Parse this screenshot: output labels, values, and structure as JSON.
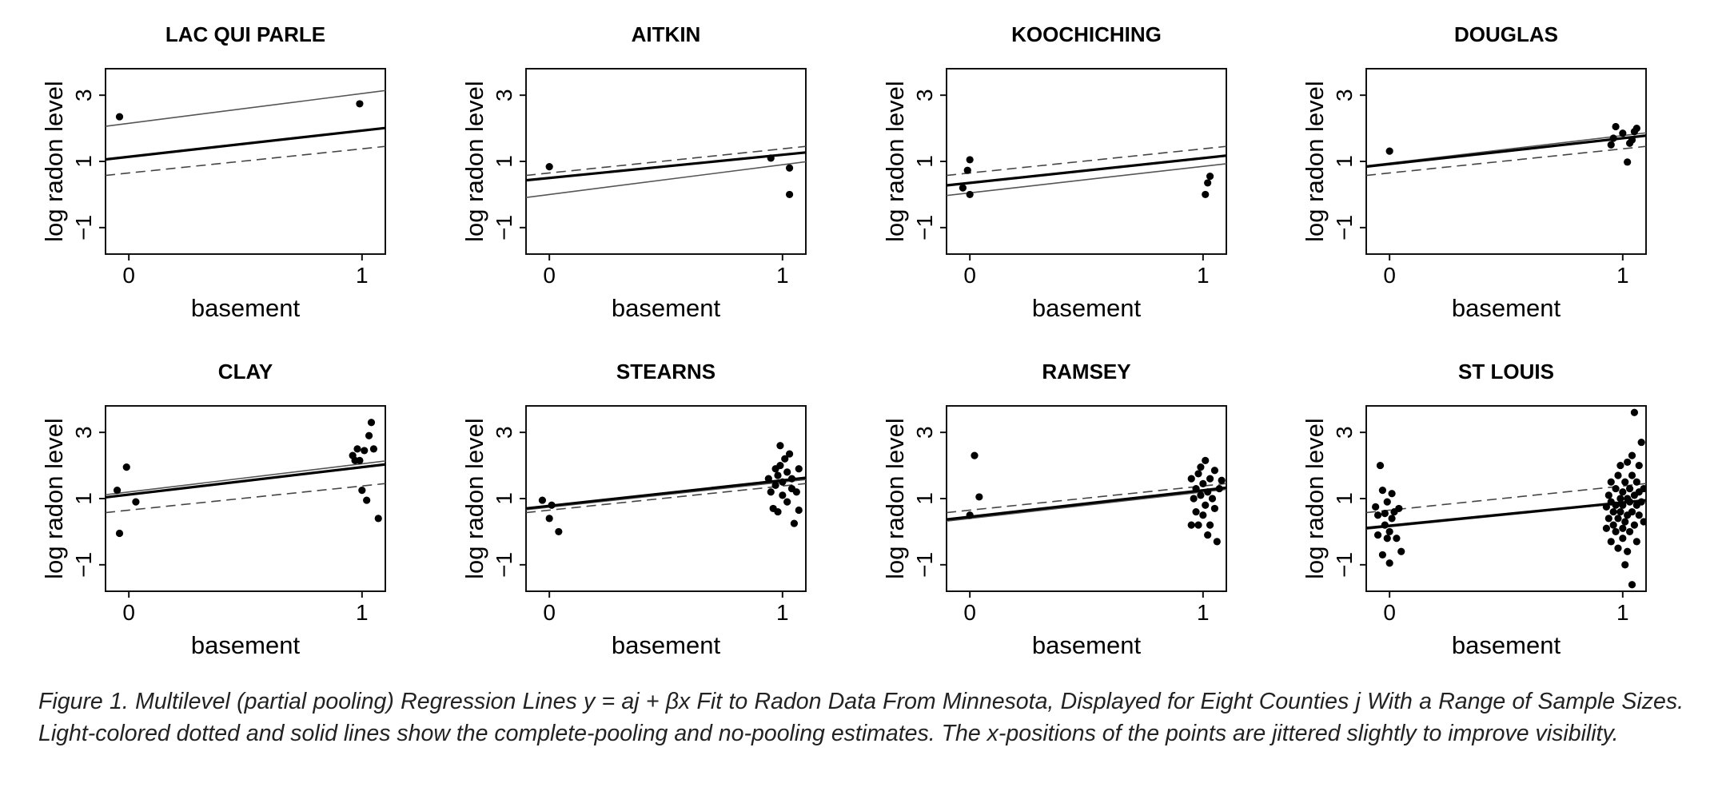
{
  "caption": "Figure 1. Multilevel (partial pooling) Regression Lines y = aj + βx Fit to Radon Data From Minnesota, Displayed for Eight Counties j With a Range of Sample Sizes. Light-colored dotted and solid lines show the complete-pooling and no-pooling estimates. The x-positions of the points are jittered slightly to improve visibility.",
  "chart_data": [
    {
      "type": "scatter",
      "title": "LAC QUI PARLE",
      "xlabel": "basement",
      "ylabel": "log radon level",
      "xticks": [
        "0",
        "1"
      ],
      "yticks": [
        "3",
        "1",
        "−1"
      ],
      "xlim": [
        -0.1,
        1.1
      ],
      "ylim": [
        -1.8,
        3.8
      ],
      "points": [
        [
          -0.04,
          2.35
        ],
        [
          0.99,
          2.74
        ]
      ],
      "lines": {
        "partial_pooling": [
          1.14,
          1.93
        ],
        "no_pooling": [
          2.15,
          3.05
        ],
        "complete_pooling": [
          0.65,
          1.38
        ]
      }
    },
    {
      "type": "scatter",
      "title": "AITKIN",
      "xlabel": "basement",
      "ylabel": "log radon level",
      "xticks": [
        "0",
        "1"
      ],
      "yticks": [
        "3",
        "1",
        "−1"
      ],
      "xlim": [
        -0.1,
        1.1
      ],
      "ylim": [
        -1.8,
        3.8
      ],
      "points": [
        [
          0.0,
          0.84
        ],
        [
          0.95,
          1.1
        ],
        [
          1.03,
          0.0
        ],
        [
          1.03,
          0.8
        ]
      ],
      "lines": {
        "partial_pooling": [
          0.5,
          1.2
        ],
        "no_pooling": [
          0.0,
          0.9
        ],
        "complete_pooling": [
          0.65,
          1.38
        ]
      }
    },
    {
      "type": "scatter",
      "title": "KOOCHICHING",
      "xlabel": "basement",
      "ylabel": "log radon level",
      "xticks": [
        "0",
        "1"
      ],
      "yticks": [
        "3",
        "1",
        "−1"
      ],
      "xlim": [
        -0.1,
        1.1
      ],
      "ylim": [
        -1.8,
        3.8
      ],
      "points": [
        [
          -0.03,
          0.2
        ],
        [
          -0.01,
          0.73
        ],
        [
          0.0,
          0.0
        ],
        [
          0.0,
          1.05
        ],
        [
          1.01,
          0.0
        ],
        [
          1.02,
          0.35
        ],
        [
          1.03,
          0.55
        ]
      ],
      "lines": {
        "partial_pooling": [
          0.35,
          1.1
        ],
        "no_pooling": [
          0.05,
          0.85
        ],
        "complete_pooling": [
          0.65,
          1.38
        ]
      }
    },
    {
      "type": "scatter",
      "title": "DOUGLAS",
      "xlabel": "basement",
      "ylabel": "log radon level",
      "xticks": [
        "0",
        "1"
      ],
      "yticks": [
        "3",
        "1",
        "−1"
      ],
      "xlim": [
        -0.1,
        1.1
      ],
      "ylim": [
        -1.8,
        3.8
      ],
      "points": [
        [
          0.0,
          1.31
        ],
        [
          0.95,
          1.5
        ],
        [
          0.96,
          1.7
        ],
        [
          0.97,
          2.05
        ],
        [
          1.0,
          1.85
        ],
        [
          1.02,
          0.98
        ],
        [
          1.03,
          1.55
        ],
        [
          1.04,
          1.65
        ],
        [
          1.05,
          1.9
        ],
        [
          1.06,
          2.0
        ]
      ],
      "lines": {
        "partial_pooling": [
          0.92,
          1.7
        ],
        "no_pooling": [
          0.95,
          1.78
        ],
        "complete_pooling": [
          0.65,
          1.38
        ]
      }
    },
    {
      "type": "scatter",
      "title": "CLAY",
      "xlabel": "basement",
      "ylabel": "log radon level",
      "xticks": [
        "0",
        "1"
      ],
      "yticks": [
        "3",
        "1",
        "−1"
      ],
      "xlim": [
        -0.1,
        1.1
      ],
      "ylim": [
        -1.8,
        3.8
      ],
      "points": [
        [
          -0.05,
          1.25
        ],
        [
          -0.04,
          -0.05
        ],
        [
          -0.01,
          1.95
        ],
        [
          0.03,
          0.9
        ],
        [
          0.96,
          2.3
        ],
        [
          0.97,
          2.15
        ],
        [
          0.98,
          2.5
        ],
        [
          0.99,
          2.15
        ],
        [
          1.0,
          1.25
        ],
        [
          1.01,
          2.45
        ],
        [
          1.02,
          0.95
        ],
        [
          1.03,
          2.9
        ],
        [
          1.04,
          3.3
        ],
        [
          1.05,
          2.5
        ],
        [
          1.07,
          0.4
        ]
      ],
      "lines": {
        "partial_pooling": [
          1.12,
          1.95
        ],
        "no_pooling": [
          1.2,
          2.05
        ],
        "complete_pooling": [
          0.65,
          1.38
        ]
      }
    },
    {
      "type": "scatter",
      "title": "STEARNS",
      "xlabel": "basement",
      "ylabel": "log radon level",
      "xticks": [
        "0",
        "1"
      ],
      "yticks": [
        "3",
        "1",
        "−1"
      ],
      "xlim": [
        -0.1,
        1.1
      ],
      "ylim": [
        -1.8,
        3.8
      ],
      "points": [
        [
          -0.03,
          0.95
        ],
        [
          0.0,
          0.4
        ],
        [
          0.01,
          0.8
        ],
        [
          0.04,
          0.0
        ],
        [
          0.94,
          1.6
        ],
        [
          0.95,
          1.2
        ],
        [
          0.96,
          0.7
        ],
        [
          0.97,
          1.4
        ],
        [
          0.97,
          1.9
        ],
        [
          0.98,
          0.6
        ],
        [
          0.98,
          1.7
        ],
        [
          0.99,
          2.0
        ],
        [
          0.99,
          2.6
        ],
        [
          1.0,
          1.1
        ],
        [
          1.0,
          1.5
        ],
        [
          1.01,
          2.2
        ],
        [
          1.02,
          1.8
        ],
        [
          1.02,
          0.9
        ],
        [
          1.03,
          2.35
        ],
        [
          1.04,
          1.3
        ],
        [
          1.04,
          1.6
        ],
        [
          1.05,
          0.25
        ],
        [
          1.06,
          1.2
        ],
        [
          1.07,
          0.65
        ],
        [
          1.07,
          1.9
        ]
      ],
      "lines": {
        "partial_pooling": [
          0.78,
          1.55
        ],
        "no_pooling": [
          0.74,
          1.5
        ],
        "complete_pooling": [
          0.65,
          1.38
        ]
      }
    },
    {
      "type": "scatter",
      "title": "RAMSEY",
      "xlabel": "basement",
      "ylabel": "log radon level",
      "xticks": [
        "0",
        "1"
      ],
      "yticks": [
        "3",
        "1",
        "−1"
      ],
      "xlim": [
        -0.1,
        1.1
      ],
      "ylim": [
        -1.8,
        3.8
      ],
      "points": [
        [
          0.0,
          0.5
        ],
        [
          0.02,
          2.3
        ],
        [
          0.04,
          1.05
        ],
        [
          0.95,
          0.2
        ],
        [
          0.95,
          1.6
        ],
        [
          0.96,
          1.0
        ],
        [
          0.97,
          0.6
        ],
        [
          0.97,
          1.3
        ],
        [
          0.98,
          1.75
        ],
        [
          0.98,
          0.2
        ],
        [
          0.99,
          1.1
        ],
        [
          0.99,
          1.95
        ],
        [
          1.0,
          0.5
        ],
        [
          1.0,
          1.45
        ],
        [
          1.01,
          0.8
        ],
        [
          1.01,
          2.15
        ],
        [
          1.02,
          1.2
        ],
        [
          1.02,
          -0.1
        ],
        [
          1.03,
          1.6
        ],
        [
          1.03,
          0.2
        ],
        [
          1.04,
          1.0
        ],
        [
          1.05,
          0.7
        ],
        [
          1.05,
          1.85
        ],
        [
          1.06,
          -0.3
        ],
        [
          1.07,
          1.3
        ],
        [
          1.08,
          1.55
        ]
      ],
      "lines": {
        "partial_pooling": [
          0.45,
          1.25
        ],
        "no_pooling": [
          0.4,
          1.2
        ],
        "complete_pooling": [
          0.65,
          1.38
        ]
      }
    },
    {
      "type": "scatter",
      "title": "ST LOUIS",
      "xlabel": "basement",
      "ylabel": "log radon level",
      "xticks": [
        "0",
        "1"
      ],
      "yticks": [
        "3",
        "1",
        "−1"
      ],
      "xlim": [
        -0.1,
        1.1
      ],
      "ylim": [
        -1.8,
        3.8
      ],
      "points": [
        [
          -0.06,
          0.75
        ],
        [
          -0.05,
          -0.1
        ],
        [
          -0.05,
          0.5
        ],
        [
          -0.04,
          2.0
        ],
        [
          -0.03,
          1.25
        ],
        [
          -0.03,
          -0.7
        ],
        [
          -0.02,
          0.2
        ],
        [
          -0.02,
          0.55
        ],
        [
          -0.01,
          -0.2
        ],
        [
          -0.01,
          0.9
        ],
        [
          0.0,
          -0.95
        ],
        [
          0.0,
          0.0
        ],
        [
          0.01,
          0.4
        ],
        [
          0.01,
          1.15
        ],
        [
          0.02,
          0.6
        ],
        [
          0.03,
          -0.2
        ],
        [
          0.04,
          0.7
        ],
        [
          0.05,
          -0.6
        ],
        [
          0.93,
          0.75
        ],
        [
          0.93,
          0.1
        ],
        [
          0.94,
          1.1
        ],
        [
          0.94,
          0.4
        ],
        [
          0.95,
          0.9
        ],
        [
          0.95,
          -0.3
        ],
        [
          0.95,
          1.5
        ],
        [
          0.96,
          0.2
        ],
        [
          0.96,
          0.6
        ],
        [
          0.97,
          1.3
        ],
        [
          0.97,
          0.0
        ],
        [
          0.97,
          0.8
        ],
        [
          0.98,
          1.7
        ],
        [
          0.98,
          0.4
        ],
        [
          0.98,
          -0.5
        ],
        [
          0.99,
          1.0
        ],
        [
          0.99,
          0.6
        ],
        [
          0.99,
          2.0
        ],
        [
          1.0,
          0.1
        ],
        [
          1.0,
          1.2
        ],
        [
          1.0,
          -0.2
        ],
        [
          1.0,
          0.8
        ],
        [
          1.01,
          1.5
        ],
        [
          1.01,
          0.3
        ],
        [
          1.01,
          -1.0
        ],
        [
          1.02,
          1.0
        ],
        [
          1.02,
          2.1
        ],
        [
          1.02,
          0.5
        ],
        [
          1.02,
          -0.6
        ],
        [
          1.03,
          0.9
        ],
        [
          1.03,
          1.3
        ],
        [
          1.03,
          0.0
        ],
        [
          1.04,
          1.7
        ],
        [
          1.04,
          0.6
        ],
        [
          1.04,
          -1.6
        ],
        [
          1.04,
          2.3
        ],
        [
          1.05,
          1.1
        ],
        [
          1.05,
          0.2
        ],
        [
          1.05,
          3.6
        ],
        [
          1.06,
          0.8
        ],
        [
          1.06,
          1.5
        ],
        [
          1.06,
          -0.3
        ],
        [
          1.07,
          2.0
        ],
        [
          1.07,
          0.5
        ],
        [
          1.07,
          1.2
        ],
        [
          1.08,
          0.9
        ],
        [
          1.08,
          2.7
        ],
        [
          1.09,
          1.3
        ],
        [
          1.09,
          0.3
        ]
      ],
      "lines": {
        "partial_pooling": [
          0.18,
          0.88
        ],
        "no_pooling": [
          0.15,
          0.86
        ],
        "complete_pooling": [
          0.65,
          1.38
        ]
      }
    }
  ]
}
